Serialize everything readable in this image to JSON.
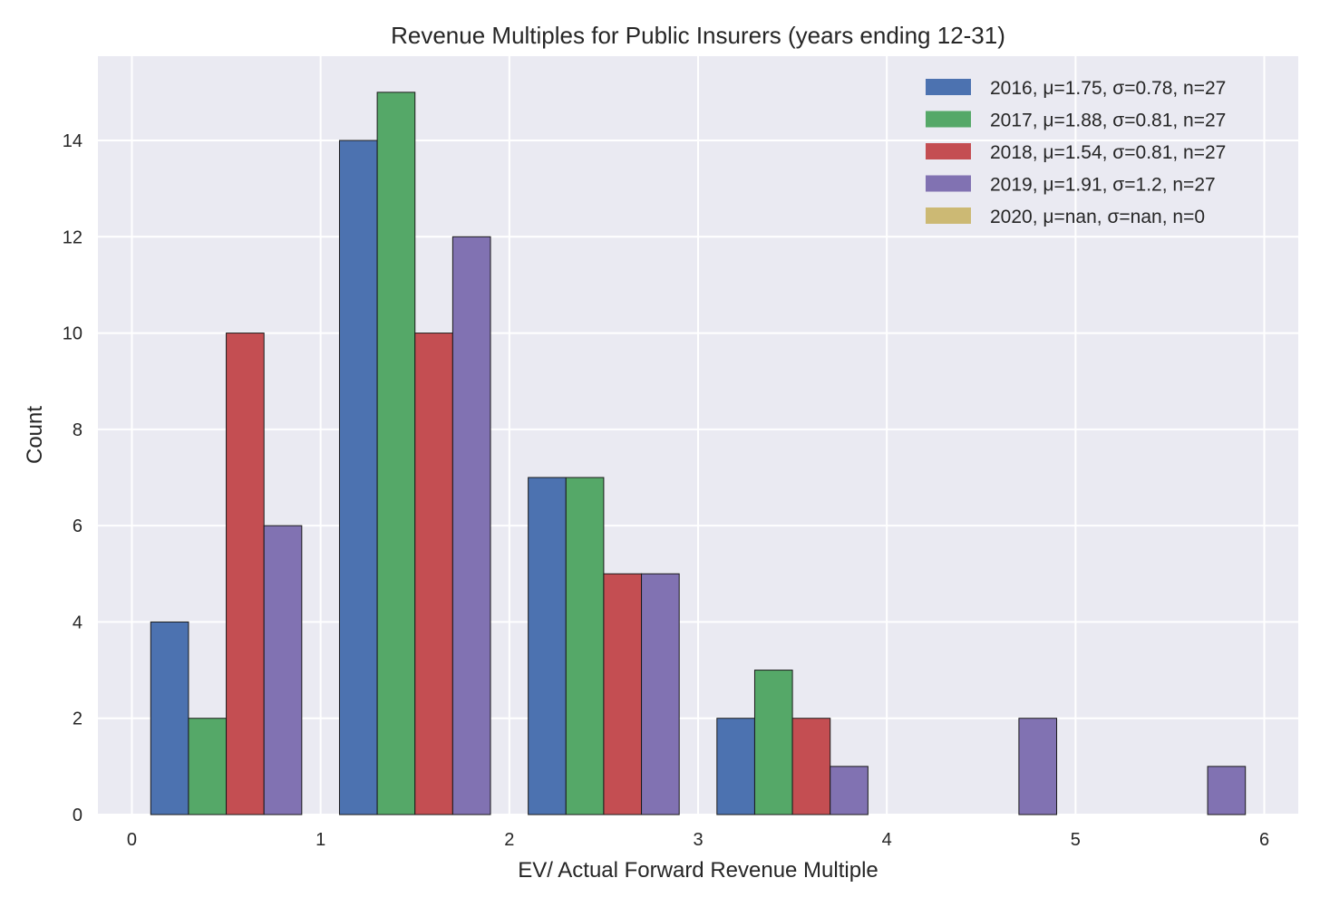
{
  "chart_data": {
    "type": "bar",
    "title": "Revenue Multiples for Public Insurers (years ending 12-31)",
    "xlabel": "EV/ Actual Forward Revenue Multiple",
    "ylabel": "Count",
    "xlim": [
      -0.18,
      6.18
    ],
    "ylim": [
      0,
      15.75
    ],
    "xticks": [
      0,
      1,
      2,
      3,
      4,
      5,
      6
    ],
    "yticks": [
      0,
      2,
      4,
      6,
      8,
      10,
      12,
      14
    ],
    "grid": true,
    "legend_position": "top-right",
    "bin_edges": [
      0.1,
      1.1,
      2.1,
      3.1,
      4.1,
      5.1,
      6.1
    ],
    "series": [
      {
        "name": "2016, μ=1.75, σ=0.78, n=27",
        "color": "#4c72b0",
        "values": [
          4,
          14,
          7,
          2,
          0,
          0
        ]
      },
      {
        "name": "2017, μ=1.88, σ=0.81, n=27",
        "color": "#55a868",
        "values": [
          2,
          15,
          7,
          3,
          0,
          0
        ]
      },
      {
        "name": "2018, μ=1.54, σ=0.81, n=27",
        "color": "#c44e52",
        "values": [
          10,
          10,
          5,
          2,
          0,
          0
        ]
      },
      {
        "name": "2019, μ=1.91, σ=1.2, n=27",
        "color": "#8172b2",
        "values": [
          6,
          12,
          5,
          1,
          2,
          1
        ]
      },
      {
        "name": "2020, μ=nan, σ=nan, n=0",
        "color": "#ccb974",
        "values": [
          0,
          0,
          0,
          0,
          0,
          0
        ]
      }
    ]
  }
}
